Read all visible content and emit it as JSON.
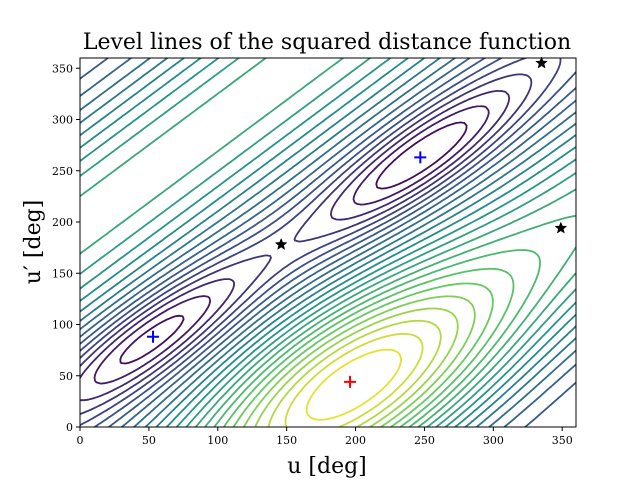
{
  "chart_data": {
    "type": "contour",
    "title": "Level lines of the squared distance function",
    "xlabel": "u [deg]",
    "ylabel": "u′ [deg]",
    "xlim": [
      0,
      360
    ],
    "ylim": [
      0,
      360
    ],
    "xticks": [
      0,
      50,
      100,
      150,
      200,
      250,
      300,
      350
    ],
    "yticks": [
      0,
      50,
      100,
      150,
      200,
      250,
      300,
      350
    ],
    "colormap": [
      "#440154",
      "#3b528b",
      "#21918c",
      "#5ec962",
      "#fde725"
    ],
    "minima_markers": {
      "symbol": "+",
      "color": "#0000ff",
      "points": [
        {
          "u": 53,
          "v": 88
        },
        {
          "u": 247,
          "v": 263
        }
      ]
    },
    "maximum_marker": {
      "symbol": "+",
      "color": "#ff0000",
      "points": [
        {
          "u": 196,
          "v": 44
        }
      ]
    },
    "saddle_markers": {
      "symbol": "star",
      "color": "#000000",
      "points": [
        {
          "u": 146,
          "v": 178
        },
        {
          "u": 335,
          "v": 355
        },
        {
          "u": 349,
          "v": 194
        }
      ]
    }
  }
}
